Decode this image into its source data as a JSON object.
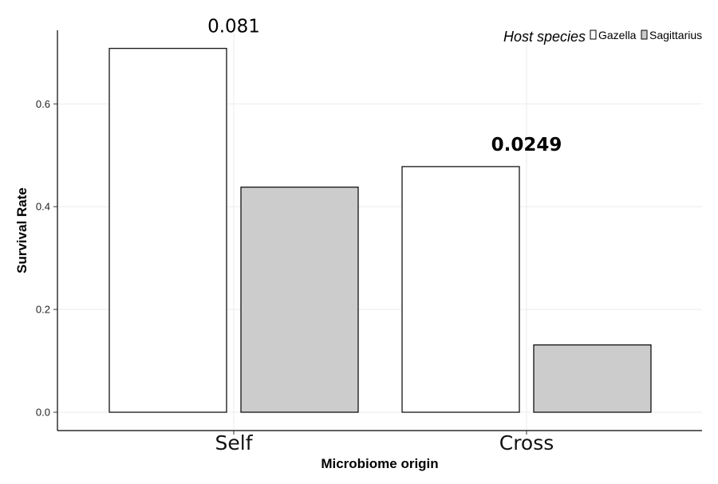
{
  "chart_data": {
    "type": "bar",
    "categories": [
      "Self",
      "Cross"
    ],
    "xlabel": "Microbiome origin",
    "ylabel": "Survival Rate",
    "ylim": [
      -0.04,
      0.74
    ],
    "yticks": [
      "0.0",
      "0.2",
      "0.4",
      "0.6"
    ],
    "ytick_values": [
      0,
      0.2,
      0.4,
      0.6
    ],
    "grid": true,
    "legend": {
      "title": "Host species",
      "position": "top-right"
    },
    "series": [
      {
        "name": "Gazella",
        "color": "#ffffff",
        "values": [
          0.708,
          0.478
        ]
      },
      {
        "name": "Sagittarius",
        "color": "#cccccc",
        "values": [
          0.438,
          0.131
        ]
      }
    ],
    "annotations": [
      {
        "category": "Self",
        "text": "0.081",
        "bold": false
      },
      {
        "category": "Cross",
        "text": "0.0249",
        "bold": true
      }
    ]
  }
}
